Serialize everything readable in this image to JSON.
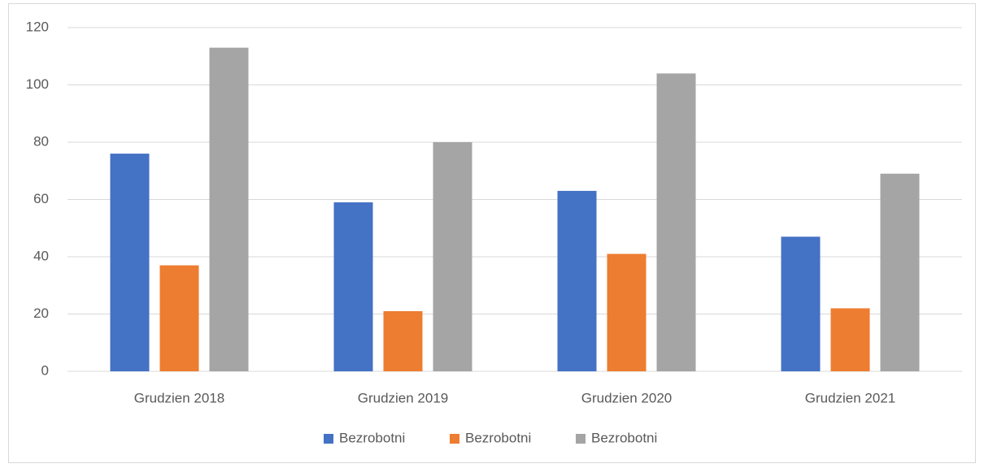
{
  "chart_data": {
    "type": "bar",
    "categories": [
      "Grudzien 2018",
      "Grudzien 2019",
      "Grudzien 2020",
      "Grudzien 2021"
    ],
    "series": [
      {
        "name": "Bezrobotni",
        "color": "#4472c4",
        "values": [
          76,
          59,
          63,
          47
        ]
      },
      {
        "name": "Bezrobotni",
        "color": "#ed7d31",
        "values": [
          37,
          21,
          41,
          22
        ]
      },
      {
        "name": "Bezrobotni",
        "color": "#a5a5a5",
        "values": [
          113,
          80,
          104,
          69
        ]
      }
    ],
    "ylim": [
      0,
      120
    ],
    "yticks": [
      0,
      20,
      40,
      60,
      80,
      100,
      120
    ],
    "grid": true,
    "legend": "bottom"
  }
}
